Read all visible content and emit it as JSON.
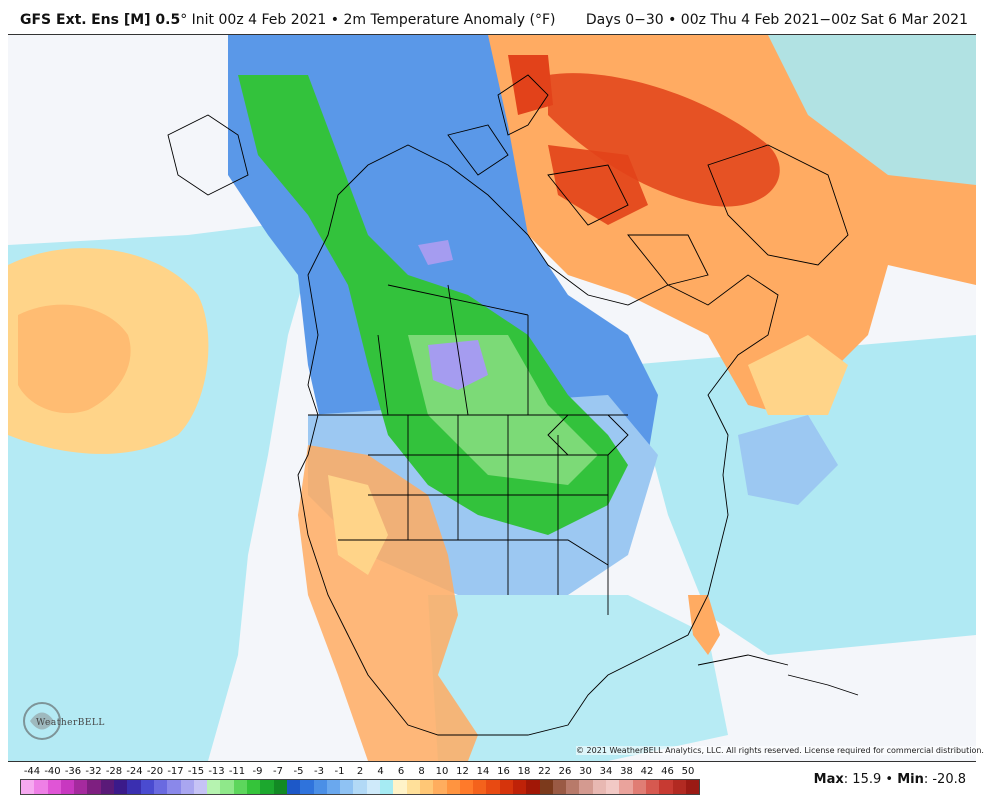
{
  "header": {
    "model": "GFS Ext.",
    "ens": "Ens [M] 0.5",
    "init": "° Init 00z 4 Feb 2021",
    "field": " • 2m Temperature Anomaly (°F)",
    "range": "Days 0−30 • 00z Thu 4 Feb 2021−00z Sat 6 Mar 2021"
  },
  "copyright": "© 2021 WeatherBELL Analytics, LLC. All rights reserved. License required for commercial distribution.",
  "logo_text": "WeatherBELL",
  "colorbar": {
    "labels": [
      "-44",
      "-40",
      "-36",
      "-32",
      "-28",
      "-24",
      "-20",
      "-17",
      "-15",
      "-13",
      "-11",
      "-9",
      "-7",
      "-5",
      "-3",
      "-1",
      "2",
      "4",
      "6",
      "8",
      "10",
      "12",
      "14",
      "16",
      "18",
      "22",
      "26",
      "30",
      "34",
      "38",
      "42",
      "46",
      "50"
    ],
    "colors": [
      "#f6a9f0",
      "#ee7fe6",
      "#e055d6",
      "#c838c0",
      "#a52a9e",
      "#7e1f80",
      "#5a1a78",
      "#3b1a8a",
      "#3a2fb0",
      "#4a4bd0",
      "#6a6ae0",
      "#8a88ea",
      "#a9a6f0",
      "#c6c3f5",
      "#b6f3b0",
      "#8fe88a",
      "#5dd65c",
      "#35c43a",
      "#1ca82e",
      "#128a24",
      "#1d58c8",
      "#2f73dc",
      "#4b8fe6",
      "#6aa8ee",
      "#8fc2f3",
      "#b2d9f6",
      "#cfeafa",
      "#a6ebf3",
      "#fff3c8",
      "#ffe09a",
      "#ffc776",
      "#ffad5e",
      "#ff9440",
      "#ff7a2a",
      "#f4621c",
      "#e84a12",
      "#d6340c",
      "#bf2208",
      "#a11706",
      "#7c3a1c",
      "#9a5a44",
      "#b87a6a",
      "#d49a90",
      "#e8b8b2",
      "#f2c9c5",
      "#eaa39c",
      "#e07d74",
      "#d65950",
      "#c73a32",
      "#b22a22",
      "#9b1a14"
    ]
  },
  "stats": {
    "max_label": "Max",
    "max": ": 15.9",
    "sep": " • ",
    "min_label": "Min",
    "min": ": -20.8"
  },
  "regions": {
    "ocean": "#f4f6fa",
    "light_blue": "#a8e8f2",
    "cold_blue": "#2e6fd8",
    "mid_blue": "#5a98e8",
    "pale_blue": "#9cc8f2",
    "green": "#33c23c",
    "light_green": "#8fe086",
    "lavender": "#a59cf0",
    "pale_orange": "#ffd489",
    "orange": "#ffab62",
    "red": "#e2421a"
  }
}
